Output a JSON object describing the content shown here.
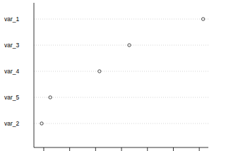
{
  "chart_data": {
    "type": "dot",
    "orientation": "horizontal",
    "categories": [
      "var_1",
      "var_3",
      "var_4",
      "var_5",
      "var_2"
    ],
    "values": [
      6.15,
      3.3,
      2.15,
      0.25,
      -0.08
    ],
    "color": "#000000",
    "marker": "open-circle",
    "xlim": [
      -0.38,
      6.35
    ],
    "xticks": [
      0,
      1,
      2,
      3,
      4,
      5,
      6
    ],
    "grid": true,
    "tick_labels": "y"
  }
}
